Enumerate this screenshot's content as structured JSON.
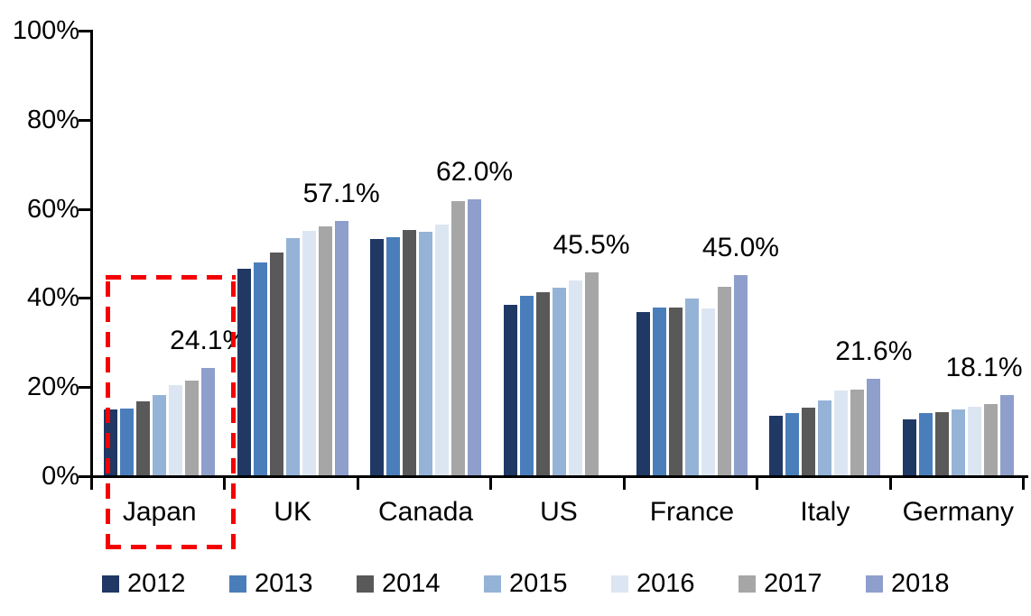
{
  "chart_data": {
    "type": "bar",
    "title": "",
    "xlabel": "",
    "ylabel": "",
    "categories": [
      "Japan",
      "UK",
      "Canada",
      "US",
      "France",
      "Italy",
      "Germany"
    ],
    "series": [
      {
        "name": "2012",
        "color": "#1F3864",
        "values": [
          14.8,
          46.3,
          53.1,
          38.3,
          36.6,
          13.3,
          12.5
        ]
      },
      {
        "name": "2013",
        "color": "#4A7EBB",
        "values": [
          15.0,
          47.8,
          53.5,
          40.2,
          37.7,
          14.0,
          13.9
        ]
      },
      {
        "name": "2014",
        "color": "#595959",
        "values": [
          16.5,
          50.0,
          55.0,
          41.0,
          37.6,
          15.2,
          14.2
        ]
      },
      {
        "name": "2015",
        "color": "#95B3D7",
        "values": [
          18.0,
          53.2,
          54.7,
          42.2,
          39.6,
          16.9,
          14.7
        ]
      },
      {
        "name": "2016",
        "color": "#DCE6F2",
        "values": [
          20.2,
          54.8,
          56.3,
          43.7,
          37.4,
          19.0,
          15.3
        ]
      },
      {
        "name": "2017",
        "color": "#A6A6A6",
        "values": [
          21.3,
          55.9,
          61.6,
          45.5,
          42.4,
          19.2,
          15.9
        ]
      },
      {
        "name": "2018",
        "color": "#8E9FCC",
        "values": [
          24.1,
          57.1,
          62.0,
          null,
          45.0,
          21.6,
          18.1
        ]
      }
    ],
    "ylim": [
      0,
      100
    ],
    "y_ticks": [
      "0%",
      "20%",
      "40%",
      "60%",
      "80%",
      "100%"
    ],
    "grid": false,
    "legend_position": "bottom",
    "data_labels": [
      "24.1%",
      "57.1%",
      "62.0%",
      "45.5%",
      "45.0%",
      "21.6%",
      "18.1%"
    ],
    "highlight": {
      "category": "Japan",
      "style": "red-dashed-rectangle",
      "color": "#F50000"
    },
    "axis_color": "#000000",
    "text_color": "#000000"
  }
}
